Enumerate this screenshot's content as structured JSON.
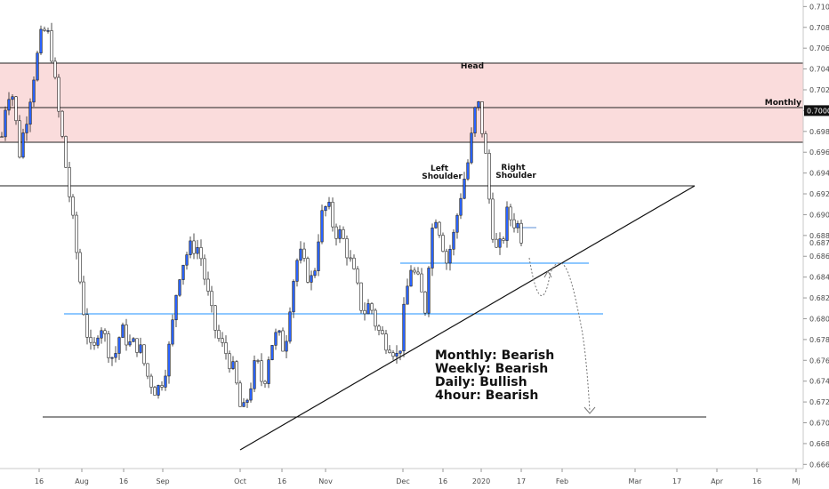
{
  "chart_data": {
    "type": "candlestick",
    "y_axis": {
      "range": [
        0.6656,
        0.7108
      ],
      "ticks": [
        "0.71000",
        "0.70800",
        "0.70600",
        "0.70400",
        "0.70200",
        "0.70000",
        "0.69800",
        "0.69600",
        "0.69400",
        "0.69200",
        "0.69000",
        "0.68800",
        "0.68600",
        "0.68400",
        "0.68200",
        "0.68000",
        "0.67800",
        "0.67600",
        "0.67400",
        "0.67200",
        "0.67000",
        "0.66800",
        "0.66600"
      ],
      "current_price": "0.68730",
      "highlighted_price": "0.70000"
    },
    "x_axis": {
      "ticks": [
        "16",
        "Aug",
        "16",
        "Sep",
        "Oct",
        "16",
        "Nov",
        "Dec",
        "16",
        "2020",
        "17",
        "Feb",
        "Mar",
        "17",
        "Apr",
        "16",
        "Mj"
      ]
    },
    "zone": {
      "low": 0.6966,
      "high": 0.7045,
      "color": "#fadcdc"
    },
    "levels": [
      {
        "price": 0.7045,
        "color": "#000000"
      },
      {
        "price": 0.7,
        "color": "#000000",
        "label": "Monthly"
      },
      {
        "price": 0.6966,
        "color": "#000000"
      },
      {
        "price": 0.6926,
        "color": "#000000"
      },
      {
        "price": 0.6849,
        "color": "#1e90ff"
      },
      {
        "price": 0.68,
        "color": "#1e90ff"
      },
      {
        "price": 0.67,
        "color": "#000000"
      },
      {
        "price": 0.6881,
        "color": "#5b8fd4"
      }
    ],
    "trendline": {
      "from": [
        "Oct 1",
        0.6671
      ],
      "to": [
        "Jan 28",
        0.6926
      ]
    },
    "annotations": [
      {
        "text": "Head",
        "at": "Dec 31"
      },
      {
        "text": "Left",
        "at": "Dec 17"
      },
      {
        "text": "Shoulder",
        "at": "Dec 17"
      },
      {
        "text": "Right",
        "at": "Jan 13"
      },
      {
        "text": "Shoulder",
        "at": "Jan 13"
      }
    ],
    "bias": [
      "Monthly: Bearish",
      "Weekly: Bearish",
      "Daily: Bullish",
      "4hour: Bearish"
    ],
    "projection_targets": [
      0.6849,
      0.67
    ],
    "colors": {
      "bull": "#2962ff",
      "bear": "#ffffff",
      "outline": "#222222",
      "grid": "#dddddd"
    }
  }
}
